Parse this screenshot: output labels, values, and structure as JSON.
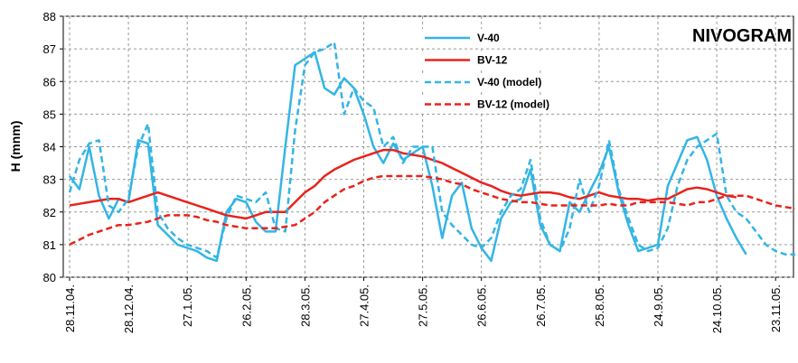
{
  "chart_data": {
    "type": "line",
    "title": "NIVOGRAM",
    "y_label": "H (mnm)",
    "categories": [
      "28.11.04.",
      null,
      null,
      null,
      null,
      null,
      "28.12.04.",
      null,
      null,
      null,
      null,
      null,
      "27.1.05.",
      null,
      null,
      null,
      null,
      null,
      "26.2.05.",
      null,
      null,
      null,
      null,
      null,
      "28.3.05.",
      null,
      null,
      null,
      null,
      null,
      "27.4.05.",
      null,
      null,
      null,
      null,
      null,
      "27.5.05.",
      null,
      null,
      null,
      null,
      null,
      "26.6.05.",
      null,
      null,
      null,
      null,
      null,
      "26.7.05.",
      null,
      null,
      null,
      null,
      null,
      "25.8.05.",
      null,
      null,
      null,
      null,
      null,
      "24.9.05.",
      null,
      null,
      null,
      null,
      null,
      "24.10.05.",
      null,
      null,
      null,
      null,
      null,
      "23.11.05.",
      null,
      null
    ],
    "series": [
      {
        "name": "V-40",
        "color": "#33b5e5",
        "line_style": "solid",
        "values": [
          83.1,
          82.7,
          84.0,
          82.5,
          81.8,
          82.4,
          82.3,
          84.2,
          84.1,
          81.6,
          81.3,
          81.0,
          80.9,
          80.8,
          80.6,
          80.5,
          82.0,
          82.4,
          82.3,
          81.7,
          81.4,
          81.4,
          84.0,
          86.5,
          86.7,
          86.9,
          85.8,
          85.6,
          86.1,
          85.8,
          85.0,
          84.0,
          83.5,
          84.1,
          83.6,
          83.8,
          84.0,
          82.8,
          81.2,
          82.5,
          82.9,
          81.5,
          80.9,
          80.5,
          81.8,
          82.3,
          82.4,
          83.3,
          81.6,
          81.0,
          80.8,
          82.3,
          82.0,
          82.6,
          83.2,
          84.0,
          82.6,
          81.6,
          80.8,
          80.9,
          81.0,
          82.8,
          83.5,
          84.2,
          84.3,
          83.6,
          82.5,
          81.8,
          81.2,
          80.7,
          null,
          null,
          null,
          null,
          null
        ]
      },
      {
        "name": "BV-12",
        "color": "#e8231d",
        "line_style": "solid",
        "values": [
          82.2,
          82.25,
          82.3,
          82.35,
          82.4,
          82.4,
          82.3,
          82.4,
          82.5,
          82.6,
          82.5,
          82.4,
          82.3,
          82.2,
          82.1,
          82.0,
          81.9,
          81.85,
          81.8,
          81.9,
          82.0,
          82.0,
          82.0,
          82.3,
          82.6,
          82.8,
          83.1,
          83.3,
          83.45,
          83.6,
          83.7,
          83.8,
          83.9,
          83.9,
          83.8,
          83.75,
          83.7,
          83.6,
          83.5,
          83.35,
          83.2,
          83.05,
          82.9,
          82.8,
          82.65,
          82.55,
          82.5,
          82.55,
          82.6,
          82.6,
          82.55,
          82.45,
          82.4,
          82.5,
          82.6,
          82.5,
          82.45,
          82.4,
          82.4,
          82.35,
          82.4,
          82.4,
          82.55,
          82.7,
          82.75,
          82.7,
          82.6,
          82.5,
          82.45,
          null,
          null,
          null,
          null,
          null,
          null
        ]
      },
      {
        "name": "V-40 (model)",
        "color": "#33b5e5",
        "line_style": "dashed",
        "values": [
          82.6,
          83.6,
          84.1,
          84.2,
          82.2,
          82.0,
          82.4,
          84.0,
          84.7,
          82.0,
          81.5,
          81.2,
          81.0,
          80.9,
          80.8,
          80.6,
          81.8,
          82.5,
          82.4,
          82.3,
          82.6,
          81.5,
          81.4,
          84.5,
          86.5,
          86.9,
          87.0,
          87.2,
          85.0,
          85.8,
          85.4,
          85.2,
          84.0,
          84.3,
          83.5,
          84.0,
          84.0,
          84.0,
          82.0,
          81.6,
          81.3,
          81.0,
          80.9,
          81.2,
          82.0,
          82.5,
          82.7,
          83.6,
          81.8,
          81.0,
          80.8,
          81.5,
          83.0,
          82.0,
          82.8,
          84.2,
          82.7,
          81.8,
          81.0,
          80.8,
          80.9,
          81.5,
          82.8,
          83.6,
          84.0,
          84.2,
          84.4,
          82.5,
          82.0,
          81.8,
          81.4,
          81.0,
          80.8,
          80.7,
          80.7
        ]
      },
      {
        "name": "BV-12 (model)",
        "color": "#e8231d",
        "line_style": "dashed",
        "values": [
          81.0,
          81.15,
          81.3,
          81.4,
          81.5,
          81.6,
          81.6,
          81.65,
          81.7,
          81.8,
          81.9,
          81.9,
          81.9,
          81.85,
          81.75,
          81.7,
          81.6,
          81.55,
          81.5,
          81.5,
          81.5,
          81.5,
          81.55,
          81.6,
          81.8,
          82.0,
          82.3,
          82.5,
          82.7,
          82.8,
          82.95,
          83.05,
          83.1,
          83.1,
          83.1,
          83.1,
          83.1,
          83.05,
          83.0,
          82.9,
          82.85,
          82.7,
          82.6,
          82.5,
          82.4,
          82.35,
          82.3,
          82.3,
          82.25,
          82.2,
          82.2,
          82.2,
          82.2,
          82.2,
          82.2,
          82.25,
          82.2,
          82.2,
          82.3,
          82.3,
          82.3,
          82.3,
          82.25,
          82.2,
          82.3,
          82.3,
          82.4,
          82.5,
          82.5,
          82.5,
          82.4,
          82.3,
          82.2,
          82.15,
          82.1
        ]
      }
    ],
    "ylim": [
      80,
      88
    ],
    "yticks": [
      80,
      81,
      82,
      83,
      84,
      85,
      86,
      87,
      88
    ],
    "grid": true,
    "legend_position": "top"
  }
}
